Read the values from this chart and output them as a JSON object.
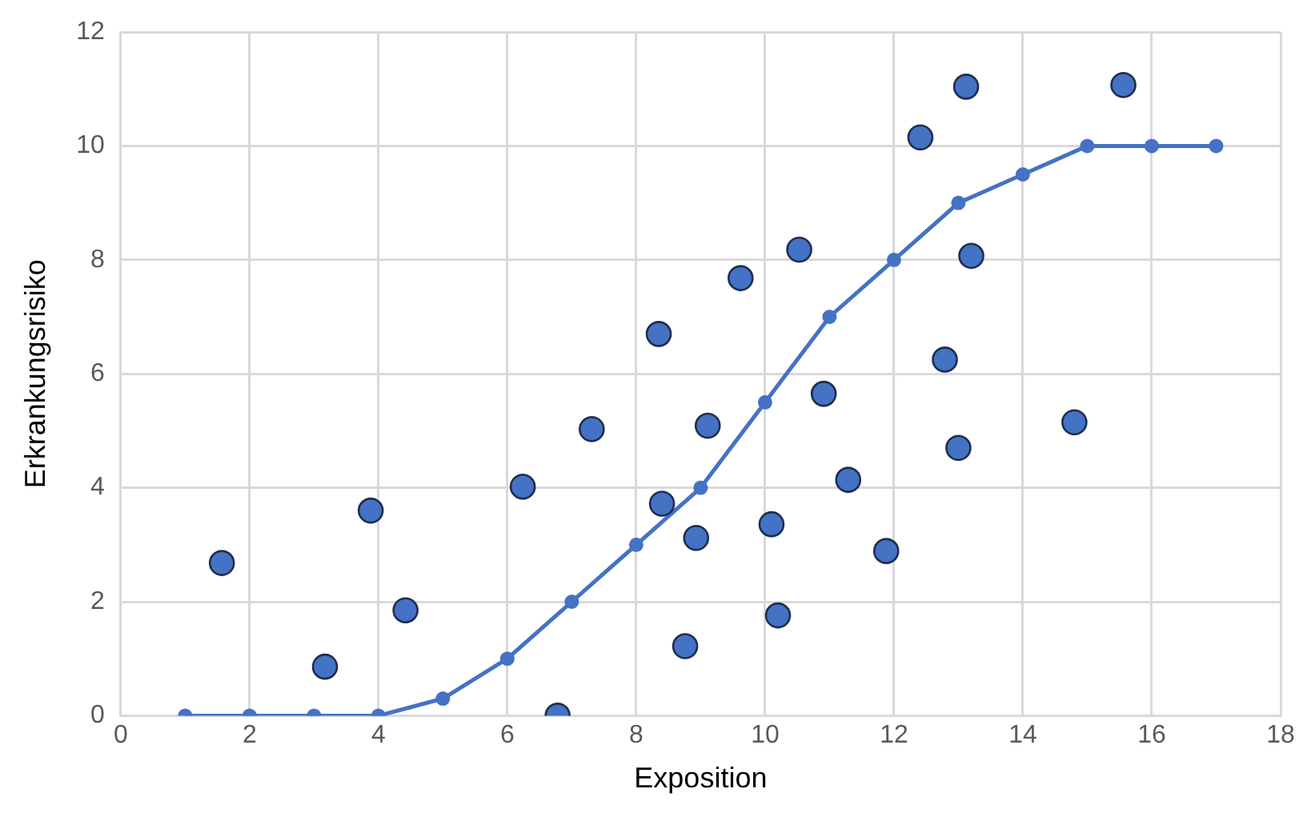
{
  "chart_data": {
    "type": "scatter",
    "xlabel": "Exposition",
    "ylabel": "Erkrankungsrisiko",
    "xlim": [
      0,
      18
    ],
    "xticks": [
      0,
      2,
      4,
      6,
      8,
      10,
      12,
      14,
      16,
      18
    ],
    "ylim": [
      0,
      12
    ],
    "yticks": [
      0,
      2,
      4,
      6,
      8,
      10,
      12
    ],
    "grid": true,
    "legend": false,
    "marker": "circle",
    "series": [
      {
        "color": "#4472c4",
        "x": [
          1.57,
          3.17,
          3.88,
          4.42,
          6.24,
          6.78,
          7.31,
          8.35,
          8.4,
          8.76,
          8.93,
          9.11,
          9.62,
          10.1,
          10.2,
          10.53,
          10.91,
          11.29,
          11.88,
          12.41,
          12.79,
          13.0,
          13.12,
          13.2,
          14.8,
          15.56
        ],
        "values": [
          2.68,
          0.86,
          3.6,
          1.85,
          4.02,
          0,
          5.03,
          6.7,
          3.72,
          1.22,
          3.12,
          5.09,
          7.68,
          3.36,
          1.76,
          8.18,
          5.65,
          4.14,
          2.89,
          10.15,
          6.25,
          4.7,
          11.04,
          8.07,
          5.15,
          11.07
        ]
      },
      {
        "type": "line",
        "color": "#4472c4",
        "line_style": "solid",
        "x": [
          1,
          2,
          3,
          4,
          5,
          6,
          7,
          8,
          9,
          10,
          11,
          12,
          13,
          14,
          15,
          16,
          17
        ],
        "values": [
          0,
          0,
          0,
          0,
          0.3,
          1,
          2,
          3,
          4,
          5.5,
          7,
          8,
          9,
          9.5,
          10,
          10,
          10
        ]
      }
    ]
  }
}
